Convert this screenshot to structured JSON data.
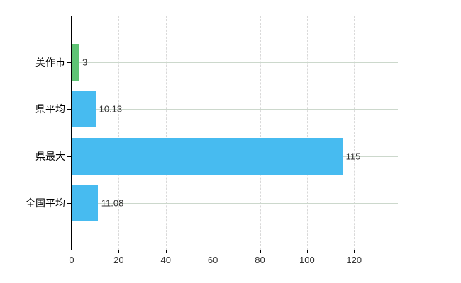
{
  "chart_data": {
    "type": "bar",
    "orientation": "horizontal",
    "title": "",
    "xlabel": "",
    "ylabel": "",
    "categories": [
      "美作市",
      "県平均",
      "県最大",
      "全国平均"
    ],
    "values": [
      3,
      10.13,
      115,
      11.08
    ],
    "value_labels": [
      "3",
      "10.13",
      "115",
      "11.08"
    ],
    "bar_colors": [
      "#5fc475",
      "#47bbf0",
      "#47bbf0",
      "#47bbf0"
    ],
    "x_ticks": [
      0,
      20,
      40,
      60,
      80,
      100,
      120
    ],
    "x_tick_labels": [
      "0",
      "20",
      "40",
      "60",
      "80",
      "100",
      "120"
    ],
    "xlim": [
      0,
      138.6
    ],
    "grid": true,
    "legend": "none",
    "colors": {
      "background": "#ffffff",
      "axis": "#000000",
      "grid_vertical_dashed": "#d9d9d9",
      "grid_horizontal": "#ccd8cc",
      "category_label": "#000000",
      "value_label": "#333333",
      "bar_blue": "#47bbf0",
      "bar_green": "#5fc475"
    }
  }
}
